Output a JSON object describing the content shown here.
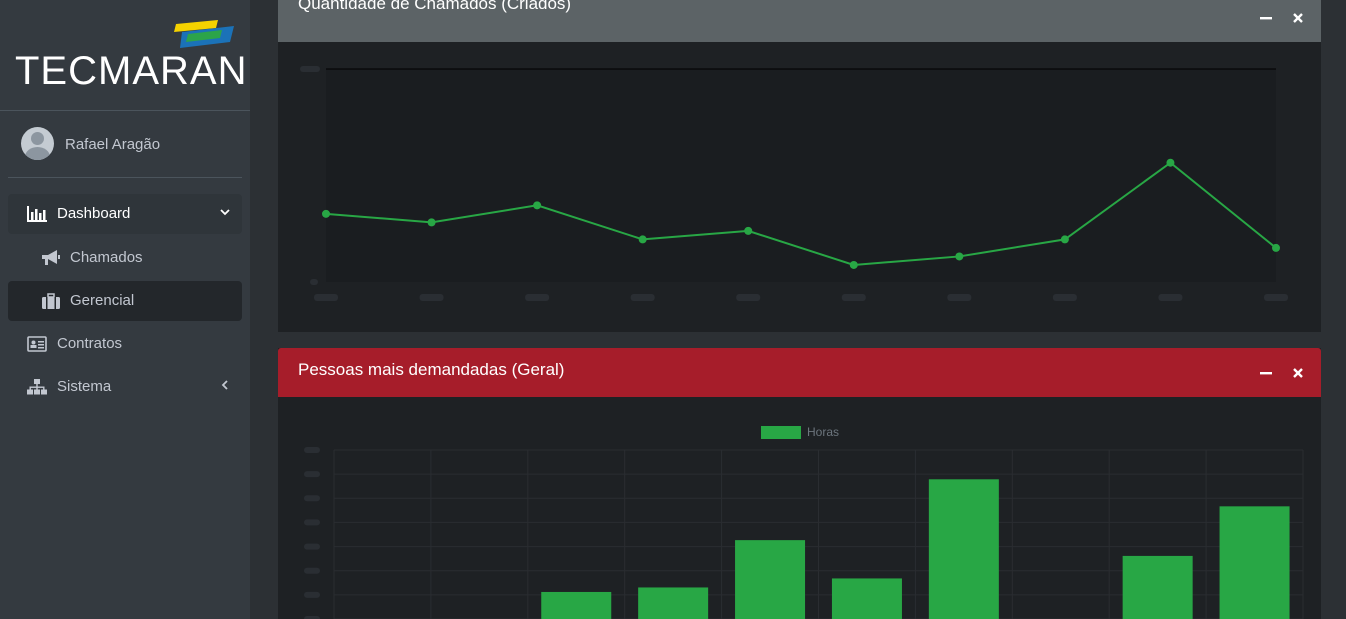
{
  "brand": {
    "name": "TECMARAN"
  },
  "user": {
    "name": "Rafael Aragão"
  },
  "sidebar": {
    "items": [
      {
        "label": "Dashboard",
        "icon": "bar-chart-icon"
      },
      {
        "label": "Chamados",
        "icon": "bullhorn-icon"
      },
      {
        "label": "Gerencial",
        "icon": "briefcase-icon"
      },
      {
        "label": "Contratos",
        "icon": "id-card-icon"
      },
      {
        "label": "Sistema",
        "icon": "sitemap-icon"
      }
    ]
  },
  "cards": {
    "chamados": {
      "title": "Quantidade de Chamados (Criados)",
      "color": "#5c6366"
    },
    "pessoas": {
      "title": "Pessoas mais demandadas (Geral)",
      "color": "#a61d2a"
    }
  },
  "colors": {
    "accent_green": "#28a745",
    "sidebar_bg": "#343a40",
    "card_bg": "#1e2124"
  },
  "chart_data": [
    {
      "type": "line",
      "title": "Quantidade de Chamados (Criados)",
      "values": [
        8,
        7,
        9,
        5,
        6,
        2,
        3,
        5,
        14,
        4
      ],
      "ylim": [
        0,
        25
      ],
      "grid": false,
      "color": "#28a745"
    },
    {
      "type": "bar",
      "title": "Pessoas mais demandadas (Geral)",
      "series": [
        {
          "name": "Horas",
          "values": [
            0,
            0,
            12,
            14,
            35,
            18,
            62,
            0,
            28,
            50
          ]
        }
      ],
      "ylim": [
        0,
        75
      ],
      "legend": "top-center",
      "grid": true,
      "color": "#28a745"
    }
  ]
}
